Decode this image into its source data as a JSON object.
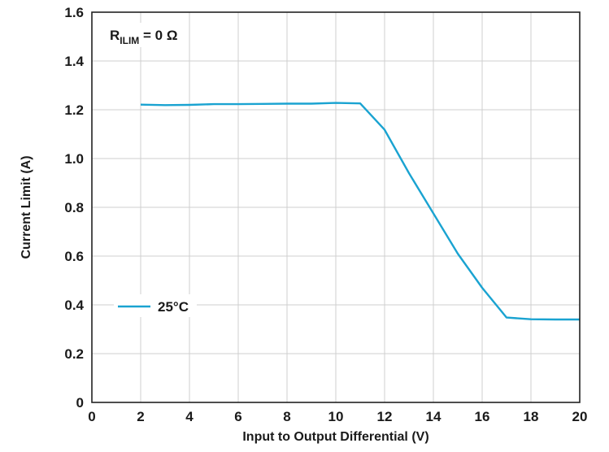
{
  "chart_data": {
    "type": "line",
    "title": "",
    "xlabel": "Input to Output Differential (V)",
    "ylabel": "Current Limit (A)",
    "xlim": [
      0,
      20
    ],
    "ylim": [
      0,
      1.6
    ],
    "xticks": [
      "0",
      "2",
      "4",
      "6",
      "8",
      "10",
      "12",
      "14",
      "16",
      "18",
      "20"
    ],
    "yticks": [
      "0",
      "0.2",
      "0.4",
      "0.6",
      "0.8",
      "1.0",
      "1.2",
      "1.4",
      "1.6"
    ],
    "grid": true,
    "legend_position": "left",
    "annotation": {
      "main": "R",
      "subscript": "ILIM",
      "rest": " = 0 Ω"
    },
    "series": [
      {
        "name": "25°C",
        "color": "#1aa3d1",
        "x": [
          2,
          3,
          4,
          5,
          6,
          7,
          8,
          9,
          10,
          11,
          12,
          13,
          14,
          15,
          16,
          17,
          18,
          19,
          20
        ],
        "y": [
          1.221,
          1.219,
          1.22,
          1.223,
          1.223,
          1.224,
          1.225,
          1.225,
          1.228,
          1.226,
          1.118,
          0.94,
          0.775,
          0.61,
          0.47,
          0.348,
          0.341,
          0.34,
          0.34
        ]
      }
    ]
  }
}
